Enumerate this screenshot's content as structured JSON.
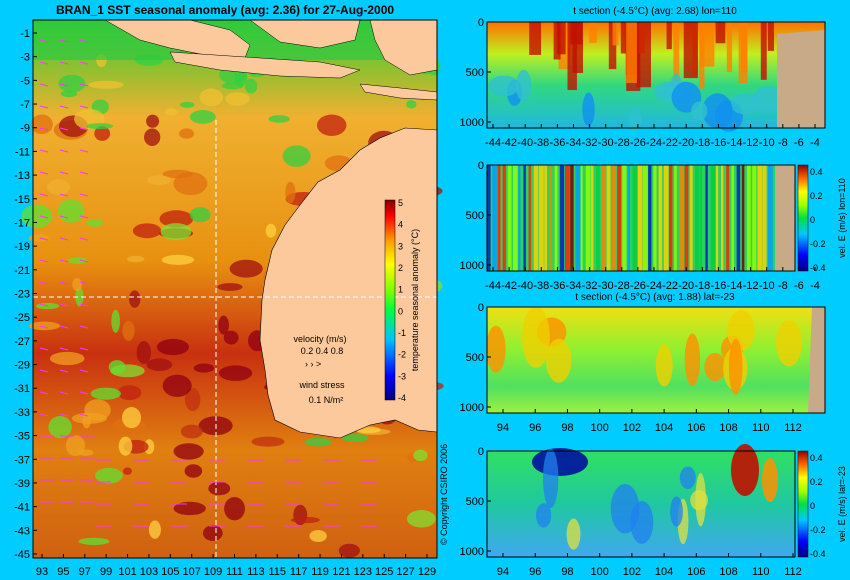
{
  "main_title": "BRAN_1  SST seasonal anomaly (avg: 2.36) for 27-Aug-2000",
  "copyright": "© Copyright CSIRO 2006",
  "colors": {
    "background": "#00ccff",
    "land": "#fcc99c",
    "land_section": "#c9aa88",
    "vector": "#ff33ff",
    "crosshair": "#ffffff"
  },
  "map": {
    "lat_ticks": [
      "-1",
      "-3",
      "-5",
      "-7",
      "-9",
      "-11",
      "-13",
      "-15",
      "-17",
      "-19",
      "-21",
      "-23",
      "-25",
      "-27",
      "-29",
      "-31",
      "-33",
      "-35",
      "-37",
      "-39",
      "-41",
      "-43",
      "-45"
    ],
    "lon_ticks": [
      "93",
      "95",
      "97",
      "99",
      "101",
      "103",
      "105",
      "107",
      "109",
      "111",
      "113",
      "115",
      "117",
      "119",
      "121",
      "123",
      "125",
      "127",
      "129"
    ],
    "colorbar_label": "temperature seasonal anomaly (°C)",
    "colorbar_ticks": [
      "5",
      "4",
      "3",
      "2",
      "1",
      "0",
      "-1",
      "-2",
      "-3",
      "-4"
    ],
    "legend_velocity_title": "velocity (m/s)",
    "legend_velocity_values": "0.2 0.4 0.8",
    "legend_wind_title": "wind stress",
    "legend_wind_value": "0.1 N/m²",
    "crosshair_lon": "110",
    "crosshair_lat": "-23"
  },
  "panel1": {
    "title": "t section (-4.5°C) (avg: 2.68) lon=110",
    "y_ticks": [
      "0",
      "500",
      "1000"
    ],
    "x_ticks": [
      "-44",
      "-42",
      "-40",
      "-38",
      "-36",
      "-34",
      "-32",
      "-30",
      "-28",
      "-26",
      "-24",
      "-22",
      "-20",
      "-18",
      "-16",
      "-14",
      "-12",
      "-10",
      "-8",
      "-6",
      "-4"
    ]
  },
  "panel2": {
    "colorbar_label": "vel. E (m/s) lon=110",
    "colorbar_ticks": [
      "0.4",
      "0.2",
      "0",
      "-0.2",
      "-0.4"
    ],
    "y_ticks": [
      "0",
      "500",
      "1000"
    ],
    "x_ticks": [
      "-44",
      "-42",
      "-40",
      "-38",
      "-36",
      "-34",
      "-32",
      "-30",
      "-28",
      "-26",
      "-24",
      "-22",
      "-20",
      "-18",
      "-16",
      "-14",
      "-12",
      "-10",
      "-8",
      "-6",
      "-4"
    ]
  },
  "panel3": {
    "title": "t section (-4.5°C) (avg: 1.88) lat=-23",
    "y_ticks": [
      "0",
      "500",
      "1000"
    ],
    "x_ticks": [
      "94",
      "96",
      "98",
      "100",
      "102",
      "104",
      "106",
      "108",
      "110",
      "112"
    ]
  },
  "panel4": {
    "colorbar_label": "vel. E (m/s) lat=-23",
    "colorbar_ticks": [
      "0.4",
      "0.2",
      "0",
      "-0.2",
      "-0.4"
    ],
    "y_ticks": [
      "0",
      "500",
      "1000"
    ],
    "x_ticks": [
      "94",
      "96",
      "98",
      "100",
      "102",
      "104",
      "106",
      "108",
      "110",
      "112"
    ]
  },
  "chart_data": [
    {
      "type": "heatmap",
      "title": "BRAN_1  SST seasonal anomaly (avg: 2.36) for 27-Aug-2000",
      "x_range": [
        93,
        130
      ],
      "y_range": [
        -45,
        0
      ],
      "colorbar_range": [
        -4,
        5
      ],
      "colorbar_label": "temperature seasonal anomaly (°C)",
      "avg": 2.36
    },
    {
      "type": "heatmap",
      "title": "t section (-4.5°C) (avg: 2.68) lon=110",
      "x_range": [
        -45,
        -3
      ],
      "y_range": [
        0,
        1050
      ],
      "y_inverted": true,
      "avg": 2.68
    },
    {
      "type": "heatmap",
      "title": "",
      "x_range": [
        -45,
        -3
      ],
      "y_range": [
        0,
        1050
      ],
      "y_inverted": true,
      "colorbar_range": [
        -0.4,
        0.45
      ],
      "colorbar_label": "vel. E (m/s) lon=110"
    },
    {
      "type": "heatmap",
      "title": "t section (-4.5°C) (avg: 1.88) lat=-23",
      "x_range": [
        93,
        114
      ],
      "y_range": [
        0,
        1050
      ],
      "y_inverted": true,
      "avg": 1.88
    },
    {
      "type": "heatmap",
      "title": "",
      "x_range": [
        93,
        114
      ],
      "y_range": [
        0,
        1050
      ],
      "y_inverted": true,
      "colorbar_range": [
        -0.4,
        0.45
      ],
      "colorbar_label": "vel. E (m/s) lat=-23"
    }
  ]
}
